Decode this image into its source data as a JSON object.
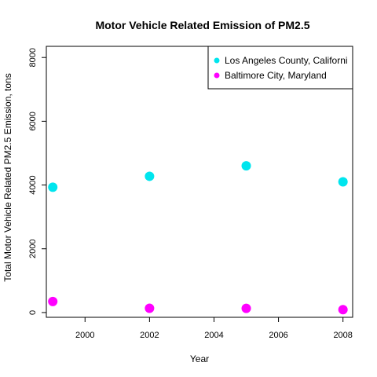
{
  "chart_data": {
    "type": "scatter",
    "title": "Motor Vehicle Related Emission of PM2.5",
    "xlabel": "Year",
    "ylabel": "Total Motor Vehicle Related PM2.5 Emission, tons",
    "xlim": [
      1998.8,
      2008.3
    ],
    "ylim": [
      -150,
      8350
    ],
    "xticks": [
      2000,
      2002,
      2004,
      2006,
      2008
    ],
    "yticks": [
      0,
      2000,
      4000,
      6000,
      8000
    ],
    "grid": false,
    "legend_position": "top-right",
    "series": [
      {
        "name": "Los Angeles County, California",
        "legend_label": "Los Angeles County, Californi",
        "color": "#00E5EE",
        "x": [
          1999,
          2002,
          2005,
          2008
        ],
        "y": [
          3931,
          4274,
          4601,
          4101
        ]
      },
      {
        "name": "Baltimore City, Maryland",
        "legend_label": "Baltimore City, Maryland",
        "color": "#FF00FF",
        "x": [
          1999,
          2002,
          2005,
          2008
        ],
        "y": [
          347,
          134,
          130,
          89
        ]
      }
    ]
  }
}
